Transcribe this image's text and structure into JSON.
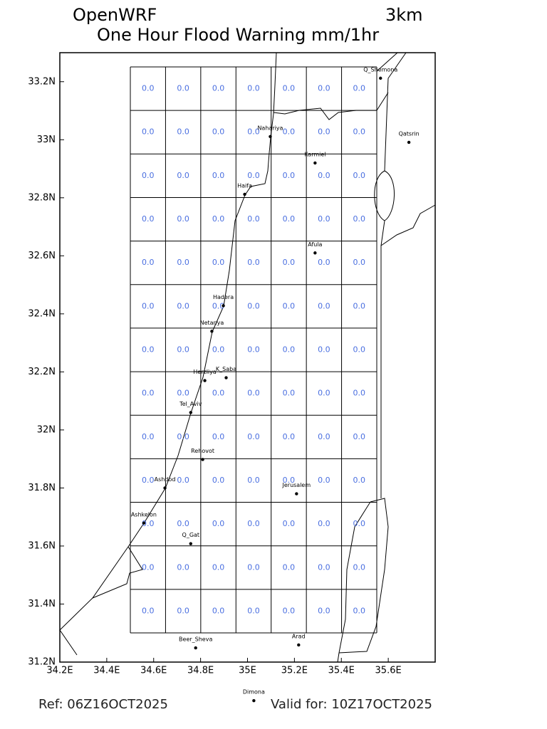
{
  "title": "OpenWRF",
  "resolution": "3km",
  "subtitle": "One Hour Flood Warning mm/1hr",
  "xlim": [
    34.2,
    35.8
  ],
  "ylim": [
    31.2,
    33.3
  ],
  "xticks": [
    {
      "value": 34.2,
      "label": "34.2E"
    },
    {
      "value": 34.4,
      "label": "34.4E"
    },
    {
      "value": 34.6,
      "label": "34.6E"
    },
    {
      "value": 34.8,
      "label": "34.8E"
    },
    {
      "value": 35,
      "label": "35E"
    },
    {
      "value": 35.2,
      "label": "35.2E"
    },
    {
      "value": 35.4,
      "label": "35.4E"
    },
    {
      "value": 35.6,
      "label": "35.6E"
    }
  ],
  "yticks": [
    {
      "value": 31.2,
      "label": "31.2N"
    },
    {
      "value": 31.4,
      "label": "31.4N"
    },
    {
      "value": 31.6,
      "label": "31.6N"
    },
    {
      "value": 31.8,
      "label": "31.8N"
    },
    {
      "value": 32,
      "label": "32N"
    },
    {
      "value": 32.2,
      "label": "32.2N"
    },
    {
      "value": 32.4,
      "label": "32.4N"
    },
    {
      "value": 32.6,
      "label": "32.6N"
    },
    {
      "value": 32.8,
      "label": "32.8N"
    },
    {
      "value": 33,
      "label": "33N"
    },
    {
      "value": 33.2,
      "label": "33.2N"
    }
  ],
  "grid": {
    "rows": [
      [
        "0.0",
        "0.0",
        "0.0",
        "0.0",
        "0.0",
        "0.0",
        "0.0"
      ],
      [
        "0.0",
        "0.0",
        "0.0",
        "0.0",
        "0.0",
        "0.0",
        "0.0"
      ],
      [
        "0.0",
        "0.0",
        "0.0",
        "0.0",
        "0.0",
        "0.0",
        "0.0"
      ],
      [
        "0.0",
        "0.0",
        "0.0",
        "0.0",
        "0.0",
        "0.0",
        "0.0"
      ],
      [
        "0.0",
        "0.0",
        "0.0",
        "0.0",
        "0.0",
        "0.0",
        "0.0"
      ],
      [
        "0.0",
        "0.0",
        "0.0",
        "0.0",
        "0.0",
        "0.0",
        "0.0"
      ],
      [
        "0.0",
        "0.0",
        "0.0",
        "0.0",
        "0.0",
        "0.0",
        "0.0"
      ],
      [
        "0.0",
        "0.0",
        "0.0",
        "0.0",
        "0.0",
        "0.0",
        "0.0"
      ],
      [
        "0.0",
        "0.0",
        "0.0",
        "0.0",
        "0.0",
        "0.0",
        "0.0"
      ],
      [
        "0.0",
        "0.0",
        "0.0",
        "0.0",
        "0.0",
        "0.0",
        "0.0"
      ],
      [
        "0.0",
        "0.0",
        "0.0",
        "0.0",
        "0.0",
        "0.0",
        "0.0"
      ],
      [
        "0.0",
        "0.0",
        "0.0",
        "0.0",
        "0.0",
        "0.0",
        "0.0"
      ],
      [
        "0.0",
        "0.0",
        "0.0",
        "0.0",
        "0.0",
        "0.0",
        "0.0"
      ]
    ]
  },
  "cities": [
    {
      "name": "Q_Shemona",
      "lon": 35.567,
      "lat": 33.212
    },
    {
      "name": "Qatsrin",
      "lon": 35.688,
      "lat": 32.991
    },
    {
      "name": "Nahariya",
      "lon": 35.097,
      "lat": 33.011
    },
    {
      "name": "Karmiel",
      "lon": 35.288,
      "lat": 32.92
    },
    {
      "name": "Haifa",
      "lon": 34.988,
      "lat": 32.812
    },
    {
      "name": "Afula",
      "lon": 35.288,
      "lat": 32.61
    },
    {
      "name": "Hadera",
      "lon": 34.897,
      "lat": 32.428
    },
    {
      "name": "Netanya",
      "lon": 34.848,
      "lat": 32.34
    },
    {
      "name": "Herzliya",
      "lon": 34.818,
      "lat": 32.17
    },
    {
      "name": "K_Saba",
      "lon": 34.909,
      "lat": 32.18
    },
    {
      "name": "Tel_Aviv",
      "lon": 34.758,
      "lat": 32.06
    },
    {
      "name": "Rehovot",
      "lon": 34.809,
      "lat": 31.898
    },
    {
      "name": "Ashdod",
      "lon": 34.648,
      "lat": 31.8
    },
    {
      "name": "Jerusalem",
      "lon": 35.209,
      "lat": 31.78
    },
    {
      "name": "Ashkelon",
      "lon": 34.558,
      "lat": 31.679
    },
    {
      "name": "Q_Gat",
      "lon": 34.758,
      "lat": 31.608
    },
    {
      "name": "Beer_Sheva",
      "lon": 34.779,
      "lat": 31.249
    },
    {
      "name": "Arad",
      "lon": 35.218,
      "lat": 31.259
    },
    {
      "name": "Dimona",
      "lon": 35.027,
      "lat": 31.067
    }
  ],
  "ref": "Ref: 06Z16OCT2025",
  "valid": "Valid for: 10Z17OCT2025"
}
